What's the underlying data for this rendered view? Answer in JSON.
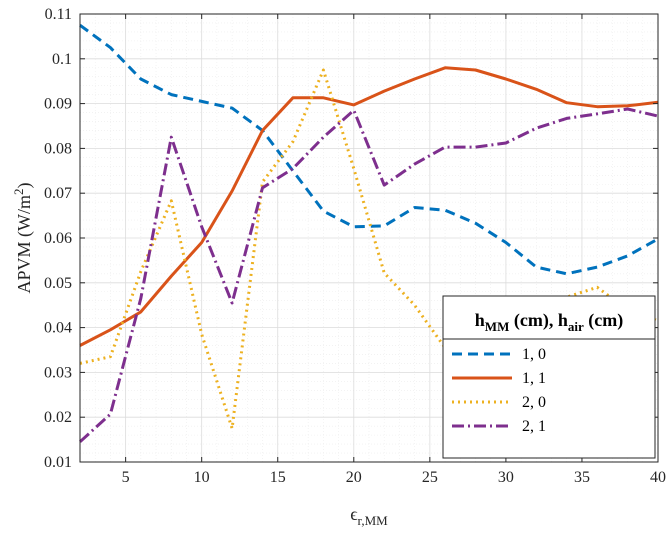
{
  "chart_data": {
    "type": "line",
    "xlabel": {
      "base": "ϵ",
      "sub": "r,MM"
    },
    "ylabel": {
      "main": "APVM (W/m",
      "sup": "2",
      "end": ")"
    },
    "xlim": [
      2,
      40
    ],
    "ylim": [
      0.01,
      0.11
    ],
    "xticks": [
      5,
      10,
      15,
      20,
      25,
      30,
      35,
      40
    ],
    "yticks": [
      0.01,
      0.02,
      0.03,
      0.04,
      0.05,
      0.06,
      0.07,
      0.08,
      0.09,
      0.1,
      0.11
    ],
    "ytick_labels": [
      "0.01",
      "0.02",
      "0.03",
      "0.04",
      "0.05",
      "0.06",
      "0.07",
      "0.08",
      "0.09",
      "0.1",
      "0.11"
    ],
    "grid": true,
    "minor_grid": true,
    "legend": {
      "position": "bottom-right",
      "title": {
        "h1": "h",
        "h1sub": "MM",
        "mid": " (cm), h",
        "h2sub": "air",
        "end": " (cm)"
      }
    },
    "x": [
      2,
      4,
      6,
      8,
      10,
      12,
      14,
      16,
      18,
      20,
      22,
      24,
      26,
      28,
      30,
      32,
      34,
      36,
      38,
      40
    ],
    "series": [
      {
        "name": "1, 0",
        "color": "#0072BD",
        "dash": "10,6",
        "values": [
          0.1075,
          0.1025,
          0.0955,
          0.092,
          0.0905,
          0.089,
          0.084,
          0.075,
          0.066,
          0.0625,
          0.0627,
          0.0668,
          0.0662,
          0.0633,
          0.059,
          0.0535,
          0.052,
          0.0535,
          0.056,
          0.0598
        ]
      },
      {
        "name": "1, 1",
        "color": "#D95319",
        "dash": "",
        "values": [
          0.036,
          0.0395,
          0.0435,
          0.0515,
          0.059,
          0.0705,
          0.084,
          0.0913,
          0.0913,
          0.0897,
          0.0928,
          0.0955,
          0.098,
          0.0975,
          0.0955,
          0.0932,
          0.0902,
          0.0893,
          0.0895,
          0.0903
        ]
      },
      {
        "name": "2, 0",
        "color": "#EDB120",
        "dash": "2,4",
        "values": [
          0.032,
          0.0335,
          0.0525,
          0.0683,
          0.0385,
          0.0175,
          0.0725,
          0.0815,
          0.0975,
          0.0755,
          0.0522,
          0.045,
          0.0355,
          0.039,
          0.0425,
          0.044,
          0.0468,
          0.049,
          0.044,
          0.0415
        ]
      },
      {
        "name": "2, 1",
        "color": "#7E2F8E",
        "dash": "12,4,2,4",
        "values": [
          0.0145,
          0.0207,
          0.0465,
          0.0825,
          0.0625,
          0.0455,
          0.0712,
          0.0755,
          0.0825,
          0.0885,
          0.0718,
          0.0765,
          0.0803,
          0.0803,
          0.0812,
          0.0845,
          0.0867,
          0.0877,
          0.0888,
          0.0872
        ]
      }
    ]
  }
}
